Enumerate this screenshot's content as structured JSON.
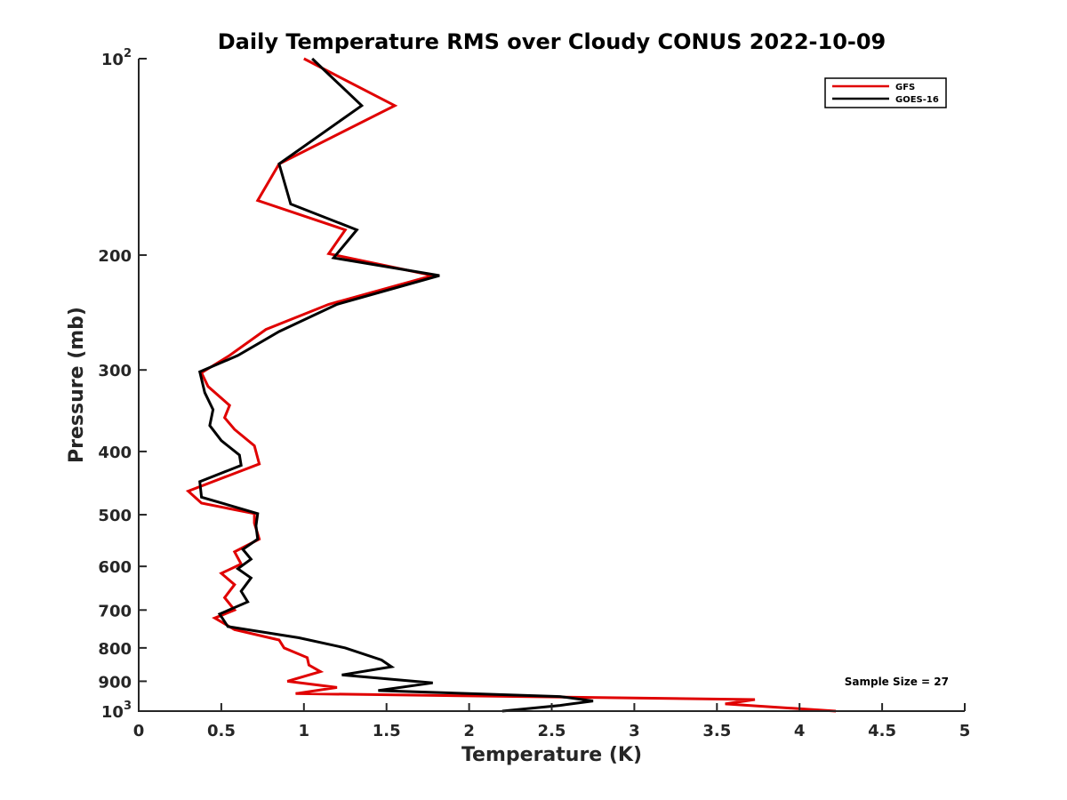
{
  "chart_data": {
    "type": "line",
    "title": "Daily Temperature RMS over Cloudy CONUS 2022-10-09",
    "xlabel": "Temperature (K)",
    "ylabel": "Pressure (mb)",
    "xlim": [
      0,
      5
    ],
    "ylim": [
      100,
      1000
    ],
    "y_scale": "log",
    "y_reversed": true,
    "grid": false,
    "legend_position": "top-right",
    "x_ticks": [
      {
        "value": 0,
        "label": "0"
      },
      {
        "value": 0.5,
        "label": "0.5"
      },
      {
        "value": 1,
        "label": "1"
      },
      {
        "value": 1.5,
        "label": "1.5"
      },
      {
        "value": 2,
        "label": "2"
      },
      {
        "value": 2.5,
        "label": "2.5"
      },
      {
        "value": 3,
        "label": "3"
      },
      {
        "value": 3.5,
        "label": "3.5"
      },
      {
        "value": 4,
        "label": "4"
      },
      {
        "value": 4.5,
        "label": "4.5"
      },
      {
        "value": 5,
        "label": "5"
      }
    ],
    "y_ticks": [
      {
        "value": 100,
        "label": "10",
        "exp": "2"
      },
      {
        "value": 200,
        "label": "200",
        "exp": ""
      },
      {
        "value": 300,
        "label": "300",
        "exp": ""
      },
      {
        "value": 400,
        "label": "400",
        "exp": ""
      },
      {
        "value": 500,
        "label": "500",
        "exp": ""
      },
      {
        "value": 600,
        "label": "600",
        "exp": ""
      },
      {
        "value": 700,
        "label": "700",
        "exp": ""
      },
      {
        "value": 800,
        "label": "800",
        "exp": ""
      },
      {
        "value": 900,
        "label": "900",
        "exp": ""
      },
      {
        "value": 1000,
        "label": "10",
        "exp": "3"
      }
    ],
    "annotation": "Sample Size = 27",
    "series": [
      {
        "name": "GFS",
        "color": "#e00000",
        "x": [
          1.0,
          1.55,
          0.85,
          0.72,
          1.25,
          1.15,
          1.78,
          1.15,
          0.77,
          0.55,
          0.38,
          0.42,
          0.55,
          0.52,
          0.58,
          0.7,
          0.73,
          0.3,
          0.38,
          0.7,
          0.7,
          0.73,
          0.58,
          0.62,
          0.5,
          0.58,
          0.52,
          0.58,
          0.46,
          0.58,
          0.85,
          0.88,
          1.02,
          1.03,
          1.1,
          0.9,
          1.2,
          0.95,
          3.73,
          3.55,
          4.22
        ],
        "y": [
          100,
          118,
          145,
          165,
          183,
          199,
          215,
          238,
          260,
          285,
          303,
          318,
          340,
          355,
          370,
          392,
          418,
          460,
          480,
          498,
          515,
          545,
          570,
          595,
          615,
          640,
          670,
          700,
          720,
          750,
          778,
          800,
          828,
          850,
          870,
          900,
          920,
          940,
          960,
          975,
          1000
        ]
      },
      {
        "name": "GOES-16",
        "color": "#000000",
        "x": [
          1.05,
          1.35,
          0.85,
          0.92,
          1.32,
          1.18,
          1.82,
          1.2,
          0.85,
          0.6,
          0.37,
          0.4,
          0.45,
          0.43,
          0.5,
          0.61,
          0.62,
          0.37,
          0.38,
          0.72,
          0.71,
          0.72,
          0.63,
          0.68,
          0.6,
          0.68,
          0.62,
          0.66,
          0.49,
          0.54,
          0.97,
          1.25,
          1.47,
          1.53,
          1.23,
          1.78,
          1.45,
          2.55,
          2.75,
          2.55,
          2.2
        ],
        "y": [
          100,
          118,
          145,
          167,
          183,
          202,
          215,
          238,
          262,
          285,
          302,
          325,
          345,
          365,
          385,
          405,
          420,
          445,
          470,
          498,
          520,
          545,
          565,
          585,
          605,
          625,
          655,
          680,
          710,
          742,
          772,
          800,
          835,
          855,
          880,
          905,
          930,
          950,
          965,
          980,
          1000
        ]
      }
    ]
  }
}
